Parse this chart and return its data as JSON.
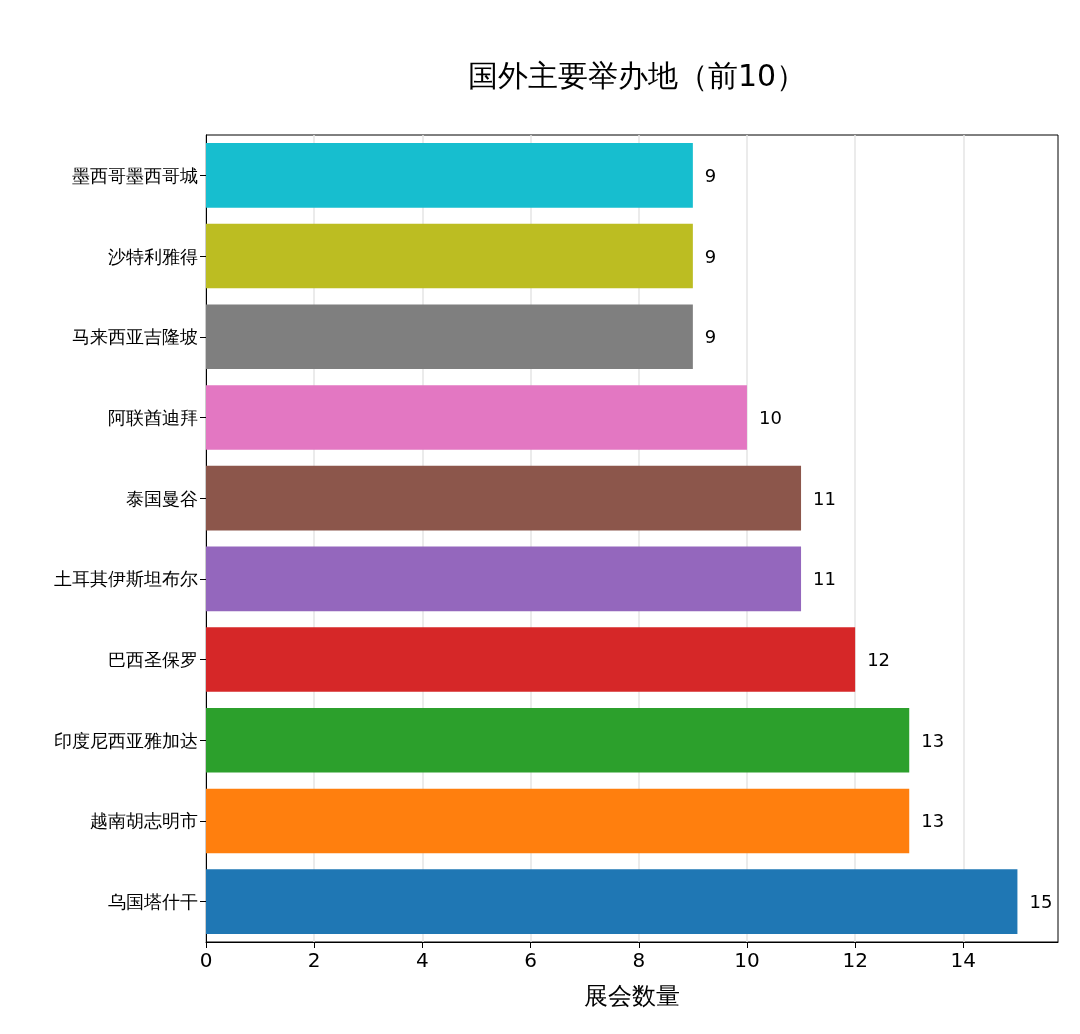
{
  "chart_data": {
    "type": "bar",
    "orientation": "horizontal",
    "title": "国外主要举办地（前10）",
    "xlabel": "展会数量",
    "categories": [
      "墨西哥墨西哥城",
      "沙特利雅得",
      "马来西亚吉隆坡",
      "阿联酋迪拜",
      "泰国曼谷",
      "土耳其伊斯坦布尔",
      "巴西圣保罗",
      "印度尼西亚雅加达",
      "越南胡志明市",
      "乌国塔什干"
    ],
    "values": [
      9,
      9,
      9,
      10,
      11,
      11,
      12,
      13,
      13,
      15
    ],
    "colors": [
      "#17becf",
      "#bcbd22",
      "#7f7f7f",
      "#e377c2",
      "#8c564b",
      "#9467bd",
      "#d62728",
      "#2ca02c",
      "#ff7f0e",
      "#1f77b4"
    ],
    "xlim": [
      0,
      15.75
    ],
    "xticks": [
      0,
      2,
      4,
      6,
      8,
      10,
      12,
      14
    ],
    "grid": "x",
    "data_labels": true
  }
}
